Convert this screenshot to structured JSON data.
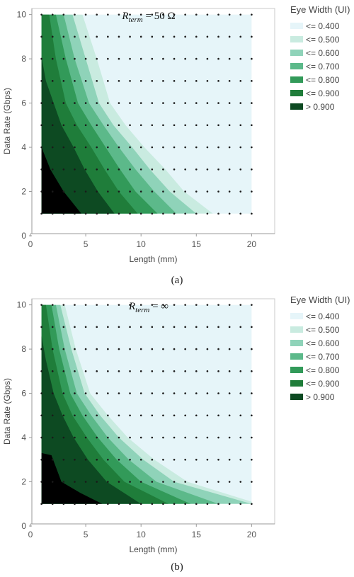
{
  "chart_data": [
    {
      "type": "heatmap",
      "subplot": "(a)",
      "title": "R_term = 50 Ω",
      "title_main": "R",
      "title_sub": "term",
      "title_value": " = 50 Ω",
      "xlabel": "Length (mm)",
      "ylabel": "Data Rate (Gbps)",
      "xlim": [
        0,
        21
      ],
      "ylim": [
        0,
        10.5
      ],
      "xticks": [
        0,
        5,
        10,
        15,
        20
      ],
      "yticks": [
        0,
        2,
        4,
        6,
        8,
        10
      ],
      "grid_x": [
        1,
        2,
        3,
        4,
        5,
        6,
        7,
        8,
        9,
        10,
        11,
        12,
        13,
        14,
        15,
        16,
        17,
        18,
        19,
        20
      ],
      "grid_y": [
        1,
        2,
        3,
        4,
        5,
        6,
        7,
        8,
        9,
        10
      ],
      "legend_title": "Eye Width (UI)",
      "levels": [
        "<= 0.400",
        "<= 0.500",
        "<= 0.600",
        "<= 0.700",
        "<= 0.800",
        "<= 0.900",
        "> 0.900"
      ],
      "contour_boundaries": [
        {
          "above": "<= 0.400",
          "points": [
            [
              4.7,
              10
            ],
            [
              6.0,
              8
            ],
            [
              7.2,
              6
            ],
            [
              8.6,
              5
            ],
            [
              10.3,
              4
            ],
            [
              12.2,
              3
            ],
            [
              13.9,
              2
            ],
            [
              16.5,
              1
            ]
          ]
        },
        {
          "above": "<= 0.500",
          "points": [
            [
              3.8,
              10
            ],
            [
              5.0,
              8
            ],
            [
              6.2,
              6
            ],
            [
              7.5,
              5
            ],
            [
              9.2,
              4
            ],
            [
              10.8,
              3
            ],
            [
              12.6,
              2
            ],
            [
              15.0,
              1
            ]
          ]
        },
        {
          "above": "<= 0.600",
          "points": [
            [
              3.0,
              10
            ],
            [
              4.0,
              8
            ],
            [
              5.3,
              6
            ],
            [
              6.6,
              5
            ],
            [
              8.0,
              4
            ],
            [
              9.5,
              3
            ],
            [
              11.2,
              2
            ],
            [
              13.2,
              1
            ]
          ]
        },
        {
          "above": "<= 0.700",
          "points": [
            [
              2.3,
              10
            ],
            [
              3.2,
              8
            ],
            [
              4.3,
              6
            ],
            [
              5.5,
              5
            ],
            [
              6.8,
              4
            ],
            [
              8.1,
              3
            ],
            [
              9.5,
              2
            ],
            [
              11.5,
              1
            ]
          ]
        },
        {
          "above": "<= 0.800",
          "points": [
            [
              1.7,
              10
            ],
            [
              2.3,
              8
            ],
            [
              3.2,
              6
            ],
            [
              4.2,
              5
            ],
            [
              5.5,
              4
            ],
            [
              6.7,
              3
            ],
            [
              8.0,
              2
            ],
            [
              9.7,
              1
            ]
          ]
        },
        {
          "above": "<= 0.900",
          "points": [
            [
              1.0,
              8.1
            ],
            [
              1.4,
              7
            ],
            [
              2.1,
              6
            ],
            [
              2.8,
              5
            ],
            [
              3.9,
              4
            ],
            [
              4.9,
              3
            ],
            [
              6.1,
              2
            ],
            [
              7.6,
              1
            ]
          ]
        },
        {
          "above": "> 0.900",
          "points": [
            [
              1.0,
              4.0
            ],
            [
              1.8,
              3
            ],
            [
              3.0,
              2
            ],
            [
              4.6,
              1
            ]
          ]
        }
      ]
    },
    {
      "type": "heatmap",
      "subplot": "(b)",
      "title": "R_term = ∞",
      "title_main": "R",
      "title_sub": "term",
      "title_value": " = ∞",
      "xlabel": "Length (mm)",
      "ylabel": "Data Rate (Gbps)",
      "xlim": [
        0,
        21
      ],
      "ylim": [
        0,
        10.5
      ],
      "xticks": [
        0,
        5,
        10,
        15,
        20
      ],
      "yticks": [
        0,
        2,
        4,
        6,
        8,
        10
      ],
      "grid_x": [
        1,
        2,
        3,
        4,
        5,
        6,
        7,
        8,
        9,
        10,
        11,
        12,
        13,
        14,
        15,
        16,
        17,
        18,
        19,
        20
      ],
      "grid_y": [
        1,
        2,
        3,
        4,
        5,
        6,
        7,
        8,
        9,
        10
      ],
      "legend_title": "Eye Width (UI)",
      "levels": [
        "<= 0.400",
        "<= 0.500",
        "<= 0.600",
        "<= 0.700",
        "<= 0.800",
        "<= 0.900",
        "> 0.900"
      ],
      "contour_boundaries": [
        {
          "above": "<= 0.400",
          "points": [
            [
              3.1,
              10
            ],
            [
              4.1,
              8
            ],
            [
              5.4,
              6
            ],
            [
              7.0,
              5
            ],
            [
              8.8,
              4
            ],
            [
              11.2,
              3
            ],
            [
              14.2,
              2
            ],
            [
              20.0,
              1.1
            ]
          ]
        },
        {
          "above": "<= 0.500",
          "points": [
            [
              2.7,
              10
            ],
            [
              3.7,
              8
            ],
            [
              4.9,
              6
            ],
            [
              6.3,
              5
            ],
            [
              8.0,
              4
            ],
            [
              10.2,
              3
            ],
            [
              13.0,
              2
            ],
            [
              20.0,
              1.0
            ]
          ]
        },
        {
          "above": "<= 0.600",
          "points": [
            [
              2.3,
              10
            ],
            [
              3.1,
              8
            ],
            [
              4.2,
              6
            ],
            [
              5.5,
              5
            ],
            [
              7.0,
              4
            ],
            [
              8.9,
              3
            ],
            [
              11.4,
              2
            ],
            [
              17.0,
              1
            ]
          ]
        },
        {
          "above": "<= 0.700",
          "points": [
            [
              1.9,
              10
            ],
            [
              2.6,
              8
            ],
            [
              3.6,
              6
            ],
            [
              4.7,
              5
            ],
            [
              6.1,
              4
            ],
            [
              7.8,
              3
            ],
            [
              10.0,
              2
            ],
            [
              14.5,
              1
            ]
          ]
        },
        {
          "above": "<= 0.800",
          "points": [
            [
              1.4,
              10
            ],
            [
              2.0,
              8
            ],
            [
              2.9,
              6
            ],
            [
              3.8,
              5
            ],
            [
              5.1,
              4
            ],
            [
              6.6,
              3
            ],
            [
              8.5,
              2
            ],
            [
              12.5,
              1
            ]
          ]
        },
        {
          "above": "<= 0.900",
          "points": [
            [
              1.0,
              8.6
            ],
            [
              1.4,
              7.5
            ],
            [
              2.1,
              6
            ],
            [
              2.9,
              5
            ],
            [
              3.9,
              4
            ],
            [
              5.2,
              3
            ],
            [
              6.9,
              2
            ],
            [
              10.0,
              1
            ]
          ]
        },
        {
          "above": "> 0.900",
          "points": [
            [
              1.0,
              3.3
            ],
            [
              1.9,
              3.2
            ],
            [
              2.8,
              2
            ],
            [
              4.5,
              1.5
            ],
            [
              6.5,
              1
            ]
          ]
        }
      ]
    }
  ],
  "colors": {
    "levels": [
      "#e6f5f9",
      "#c9ebe0",
      "#8fd3b9",
      "#5cb98a",
      "#329a59",
      "#1f7d3a",
      "#0d4a22"
    ],
    "dot": "#1a1a1a",
    "frame": "#c8c8c8",
    "axis": "#9a9a9a"
  },
  "captions": [
    "(a)",
    "(b)"
  ]
}
